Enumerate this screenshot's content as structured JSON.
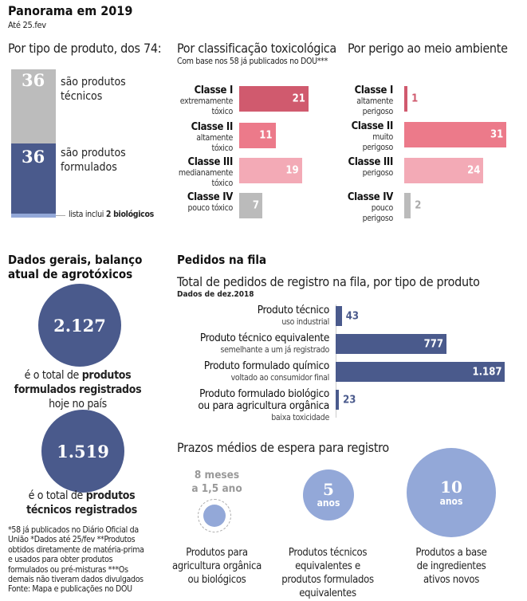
{
  "header": {
    "title": "Panorama em 2019",
    "date": "Até 25.fev"
  },
  "colors": {
    "navy": "#4a5a8c",
    "light_blue": "#93a8d8",
    "class1": "#d05a6e",
    "class2": "#ec7a8a",
    "class3": "#f3aab6",
    "class4": "#bbbbbb"
  },
  "chart_data": [
    {
      "type": "bar",
      "title": "Por tipo de produto, dos 74:",
      "stacked": true,
      "categories": [
        "são produtos técnicos",
        "são produtos formulados"
      ],
      "values": [
        36,
        36
      ],
      "note_prefix": "lista inclui ",
      "note_bold": "2 biológicos",
      "note_value": 2,
      "labels": [
        {
          "value": "36",
          "text1": "são produtos",
          "text2": "técnicos"
        },
        {
          "value": "36",
          "text1": "são produtos",
          "text2": "formulados"
        }
      ]
    },
    {
      "type": "bar",
      "title": "Por classificação toxicológica",
      "subtitle": "Com base nos 58 já publicados no DOU***",
      "categories": [
        {
          "name": "Classe I",
          "desc": [
            "extremamente",
            "tóxico"
          ]
        },
        {
          "name": "Classe II",
          "desc": [
            "altamente",
            "tóxico"
          ]
        },
        {
          "name": "Classe III",
          "desc": [
            "medianamente",
            "tóxico"
          ]
        },
        {
          "name": "Classe IV",
          "desc": [
            "pouco tóxico"
          ]
        }
      ],
      "values": [
        21,
        11,
        19,
        7
      ]
    },
    {
      "type": "bar",
      "title": "Por perigo ao meio ambiente",
      "categories": [
        {
          "name": "Classe I",
          "desc": [
            "altamente",
            "perigoso"
          ]
        },
        {
          "name": "Classe II",
          "desc": [
            "muito",
            "perigoso"
          ]
        },
        {
          "name": "Classe III",
          "desc": [
            "perigoso"
          ]
        },
        {
          "name": "Classe IV",
          "desc": [
            "pouco",
            "perigoso"
          ]
        }
      ],
      "values": [
        1,
        31,
        24,
        2
      ]
    },
    {
      "type": "bar",
      "title": "Total de pedidos de registro na fila, por tipo de produto",
      "subtitle": "Dados de dez.2018",
      "categories": [
        {
          "name": [
            "Produto técnico"
          ],
          "desc": "uso industrial"
        },
        {
          "name": [
            "Produto técnico equivalente"
          ],
          "desc": "semelhante a um já registrado"
        },
        {
          "name": [
            "Produto formulado químico"
          ],
          "desc": "voltado ao consumidor final"
        },
        {
          "name": [
            "Produto formulado biológico",
            "ou para agricultura orgânica"
          ],
          "desc": "baixa toxicidade"
        }
      ],
      "values": [
        43,
        777,
        1187,
        23
      ],
      "value_labels": [
        "43",
        "777",
        "1.187",
        "23"
      ]
    }
  ],
  "general": {
    "title1": "Dados gerais, balanço",
    "title2": "atual de agrotóxicos",
    "stat1": {
      "value": "2.127",
      "pre": "é o total de ",
      "bold1": "produtos",
      "bold2": "formulados registrados",
      "post": "hoje no país"
    },
    "stat2": {
      "value": "1.519",
      "pre": "é o total de ",
      "bold1": "produtos",
      "bold2": "técnicos registrados"
    }
  },
  "queue": {
    "title": "Pedidos na fila"
  },
  "waits": {
    "title": "Prazos médios de espera para registro",
    "items": [
      {
        "value1": "8 meses",
        "value2": "a 1,5 ano",
        "caption": [
          "Produtos para",
          "agricultura orgânica",
          "ou biológicos"
        ]
      },
      {
        "value1": "5",
        "value2": "anos",
        "caption": [
          "Produtos técnicos",
          "equivalentes e",
          "produtos formulados",
          "equivalentes"
        ]
      },
      {
        "value1": "10",
        "value2": "anos",
        "caption": [
          "Produtos a base",
          "de ingredientes",
          "ativos novos"
        ]
      }
    ]
  },
  "footnote": [
    "*58 já publicados no Diário Oficial da",
    "União *Dados até 25/fev **Produtos",
    "obtidos diretamente de matéria-prima",
    "e usados para obter produtos",
    "formulados ou pré-misturas ***Os",
    "demais não tiveram dados divulgados",
    "Fonte: Mapa e publicações no DOU"
  ]
}
